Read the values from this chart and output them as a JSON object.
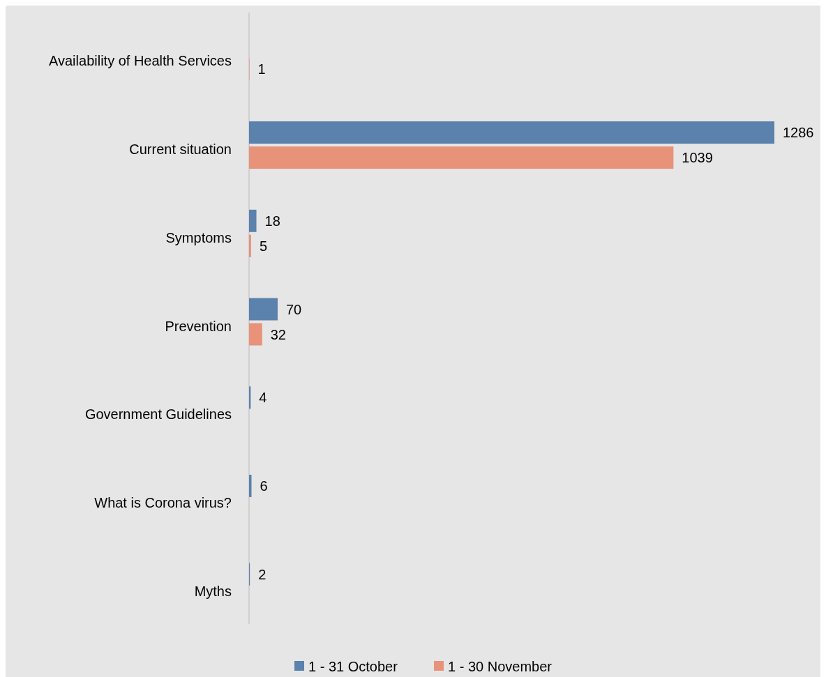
{
  "chart_data": {
    "type": "bar",
    "orientation": "horizontal",
    "categories": [
      "Availability of Health Services",
      "Current situation",
      "Symptoms",
      "Prevention",
      "Government Guidelines",
      "What is Corona virus?",
      "Myths"
    ],
    "series": [
      {
        "name": "1 - 31 October",
        "color": "#5b81ad",
        "values": [
          null,
          1286,
          18,
          70,
          4,
          6,
          2
        ]
      },
      {
        "name": "1 - 30 November",
        "color": "#e8927a",
        "values": [
          1,
          1039,
          5,
          32,
          null,
          null,
          null
        ]
      }
    ],
    "data_labels": true,
    "legend": "bottom"
  }
}
